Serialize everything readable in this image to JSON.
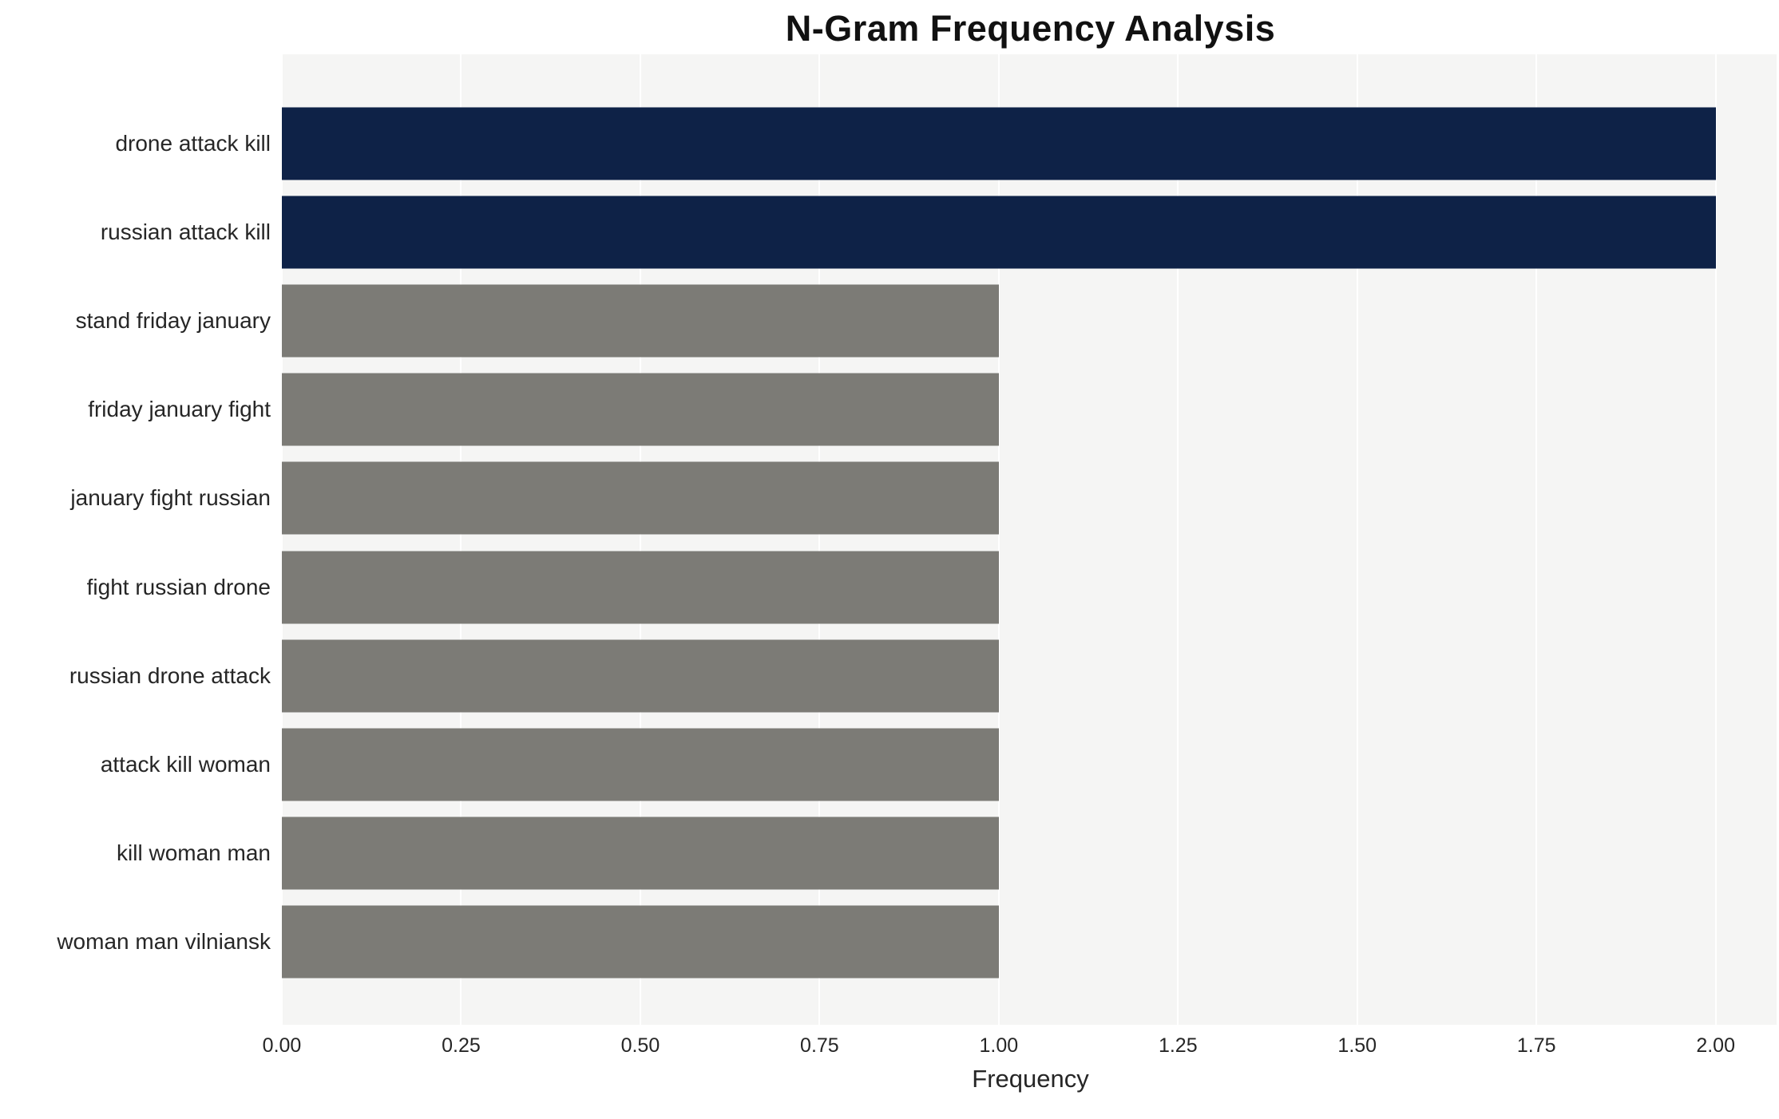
{
  "chart_data": {
    "type": "bar",
    "orientation": "horizontal",
    "title": "N-Gram Frequency Analysis",
    "xlabel": "Frequency",
    "ylabel": "",
    "categories": [
      "drone attack kill",
      "russian attack kill",
      "stand friday january",
      "friday january fight",
      "january fight russian",
      "fight russian drone",
      "russian drone attack",
      "attack kill woman",
      "kill woman man",
      "woman man vilniansk"
    ],
    "values": [
      2,
      2,
      1,
      1,
      1,
      1,
      1,
      1,
      1,
      1
    ],
    "xlim": [
      0,
      2.085
    ],
    "xticks": [
      0,
      0.25,
      0.5,
      0.75,
      1,
      1.25,
      1.5,
      1.75,
      2
    ],
    "xtick_labels": [
      "0.00",
      "0.25",
      "0.50",
      "0.75",
      "1.00",
      "1.25",
      "1.50",
      "1.75",
      "2.00"
    ],
    "grid": true,
    "legend": false,
    "plot_bg_color": "#f5f5f4",
    "grid_color": "#ffffff",
    "value_colors": {
      "2": "#0e2247",
      "1": "#7c7b76"
    },
    "default_bar_color": "#7c7b76"
  }
}
